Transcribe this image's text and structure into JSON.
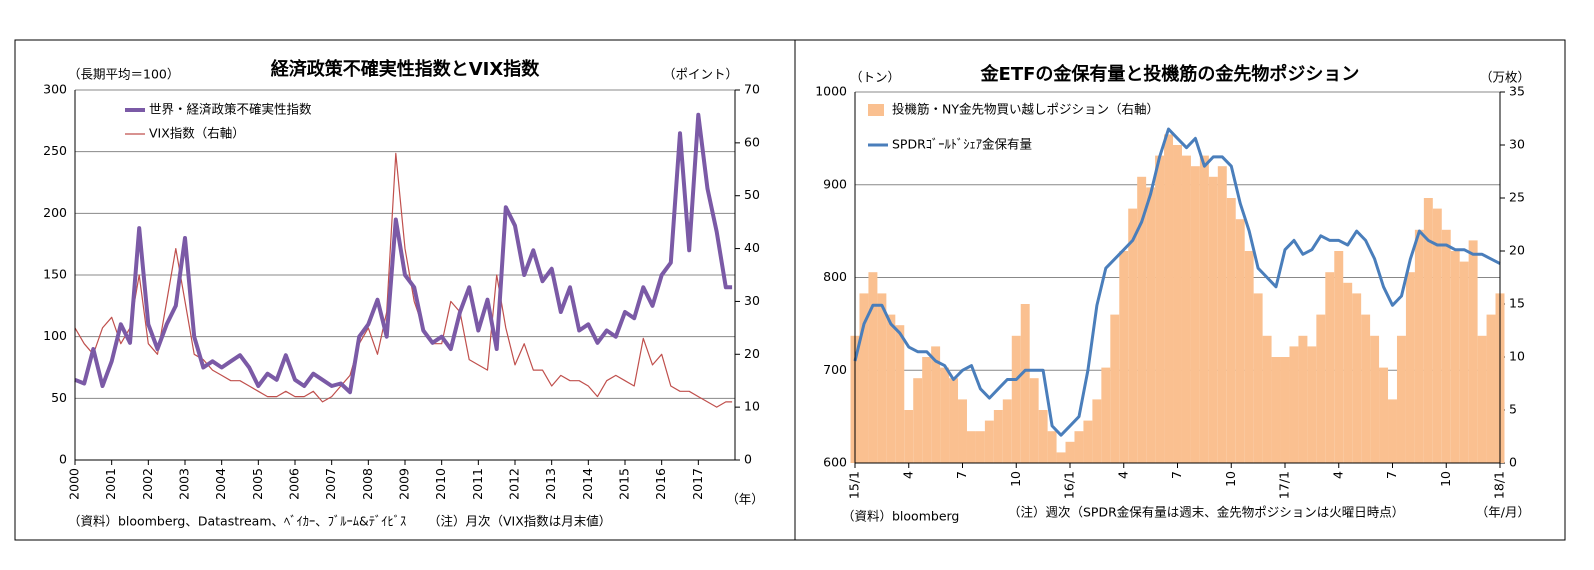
{
  "chart_data": [
    {
      "type": "line",
      "title": "経済政策不確実性指数とVIX指数",
      "ylabel": "（長期平均＝100）",
      "y2label": "（ポイント）",
      "xlabel": "（年）",
      "source": "（資料）bloomberg、Datastream、ﾍﾞｲｶｰ、ﾌﾞﾙｰﾑ&ﾃﾞｲﾋﾞｽ",
      "note": "（注）月次（VIX指数は月末値）",
      "grid": true,
      "legend": "upper left",
      "xlim": [
        2000,
        2018
      ],
      "xticks": [
        2000,
        2001,
        2002,
        2003,
        2004,
        2005,
        2006,
        2007,
        2008,
        2009,
        2010,
        2011,
        2012,
        2013,
        2014,
        2015,
        2016,
        2017
      ],
      "ylim": [
        0,
        300
      ],
      "yticks": [
        0,
        50,
        100,
        150,
        200,
        250,
        300
      ],
      "y2lim": [
        0,
        70
      ],
      "y2ticks": [
        0,
        10,
        20,
        30,
        40,
        50,
        60,
        70
      ],
      "x": [
        2000,
        2000.25,
        2000.5,
        2000.75,
        2001,
        2001.25,
        2001.5,
        2001.75,
        2002,
        2002.25,
        2002.5,
        2002.75,
        2003,
        2003.25,
        2003.5,
        2003.75,
        2004,
        2004.25,
        2004.5,
        2004.75,
        2005,
        2005.25,
        2005.5,
        2005.75,
        2006,
        2006.25,
        2006.5,
        2006.75,
        2007,
        2007.25,
        2007.5,
        2007.75,
        2008,
        2008.25,
        2008.5,
        2008.75,
        2009,
        2009.25,
        2009.5,
        2009.75,
        2010,
        2010.25,
        2010.5,
        2010.75,
        2011,
        2011.25,
        2011.5,
        2011.75,
        2012,
        2012.25,
        2012.5,
        2012.75,
        2013,
        2013.25,
        2013.5,
        2013.75,
        2014,
        2014.25,
        2014.5,
        2014.75,
        2015,
        2015.25,
        2015.5,
        2015.75,
        2016,
        2016.25,
        2016.5,
        2016.75,
        2017,
        2017.25,
        2017.5,
        2017.75,
        2017.92
      ],
      "series": [
        {
          "name": "世界・経済政策不確実性指数",
          "color": "#7b5aa6",
          "width": 4,
          "values": [
            65,
            62,
            90,
            60,
            80,
            110,
            95,
            188,
            110,
            90,
            110,
            125,
            180,
            100,
            75,
            80,
            75,
            80,
            85,
            75,
            60,
            70,
            65,
            85,
            65,
            60,
            70,
            65,
            60,
            62,
            55,
            100,
            110,
            130,
            100,
            195,
            150,
            140,
            105,
            95,
            100,
            90,
            120,
            140,
            105,
            130,
            90,
            205,
            190,
            150,
            170,
            145,
            155,
            120,
            140,
            105,
            110,
            95,
            105,
            100,
            120,
            115,
            140,
            125,
            150,
            160,
            265,
            170,
            280,
            220,
            185,
            140,
            140
          ]
        },
        {
          "name": "VIX指数（右軸）",
          "color": "#c0504d",
          "width": 1.2,
          "axis": "y2",
          "values": [
            25,
            22,
            20,
            25,
            27,
            22,
            25,
            35,
            22,
            20,
            30,
            40,
            30,
            20,
            19,
            17,
            16,
            15,
            15,
            14,
            13,
            12,
            12,
            13,
            12,
            12,
            13,
            11,
            12,
            14,
            16,
            22,
            25,
            20,
            28,
            58,
            40,
            30,
            25,
            22,
            22,
            30,
            28,
            19,
            18,
            17,
            35,
            25,
            18,
            22,
            17,
            17,
            14,
            16,
            15,
            15,
            14,
            12,
            15,
            16,
            15,
            14,
            23,
            18,
            20,
            14,
            13,
            13,
            12,
            11,
            10,
            11,
            11
          ]
        }
      ]
    },
    {
      "type": "combo",
      "title": "金ETFの金保有量と投機筋の金先物ポジション",
      "ylabel": "（トン）",
      "y2label": "（万枚）",
      "xlabel": "（年/月）",
      "source": "（資料）bloomberg",
      "note": "（注）週次（SPDR金保有量は週末、金先物ポジションは火曜日時点）",
      "grid": true,
      "legend": "upper left",
      "xlim": [
        0,
        36
      ],
      "xticks": [
        {
          "value": 0,
          "label": "15/1"
        },
        {
          "value": 3,
          "label": "4"
        },
        {
          "value": 6,
          "label": "7"
        },
        {
          "value": 9,
          "label": "10"
        },
        {
          "value": 12,
          "label": "16/1"
        },
        {
          "value": 15,
          "label": "4"
        },
        {
          "value": 18,
          "label": "7"
        },
        {
          "value": 21,
          "label": "10"
        },
        {
          "value": 24,
          "label": "17/1"
        },
        {
          "value": 27,
          "label": "4"
        },
        {
          "value": 30,
          "label": "7"
        },
        {
          "value": 33,
          "label": "10"
        },
        {
          "value": 36,
          "label": "18/1"
        }
      ],
      "ylim": [
        600,
        1000
      ],
      "yticks": [
        600,
        700,
        800,
        900,
        1000
      ],
      "y2lim": [
        0,
        35
      ],
      "y2ticks": [
        0,
        5,
        10,
        15,
        20,
        25,
        30,
        35
      ],
      "x": [
        0,
        0.5,
        1,
        1.5,
        2,
        2.5,
        3,
        3.5,
        4,
        4.5,
        5,
        5.5,
        6,
        6.5,
        7,
        7.5,
        8,
        8.5,
        9,
        9.5,
        10,
        10.5,
        11,
        11.5,
        12,
        12.5,
        13,
        13.5,
        14,
        14.5,
        15,
        15.5,
        16,
        16.5,
        17,
        17.5,
        18,
        18.5,
        19,
        19.5,
        20,
        20.5,
        21,
        21.5,
        22,
        22.5,
        23,
        23.5,
        24,
        24.5,
        25,
        25.5,
        26,
        26.5,
        27,
        27.5,
        28,
        28.5,
        29,
        29.5,
        30,
        30.5,
        31,
        31.5,
        32,
        32.5,
        33,
        33.5,
        34,
        34.5,
        35,
        35.5,
        36
      ],
      "series": [
        {
          "name": "投機筋・NY金先物買い越しポジション（右軸）",
          "type": "bar",
          "color": "#fac090",
          "axis": "y2",
          "values": [
            12,
            16,
            18,
            16,
            14,
            13,
            5,
            8,
            10,
            11,
            9,
            8,
            6,
            3,
            3,
            4,
            5,
            6,
            12,
            15,
            8,
            5,
            3,
            1,
            2,
            3,
            4,
            6,
            9,
            14,
            20,
            24,
            27,
            26,
            29,
            31,
            30,
            29,
            28,
            29,
            27,
            28,
            25,
            23,
            20,
            16,
            12,
            10,
            10,
            11,
            12,
            11,
            14,
            18,
            20,
            17,
            16,
            14,
            12,
            9,
            6,
            12,
            18,
            22,
            25,
            24,
            22,
            20,
            19,
            21,
            12,
            14,
            16
          ]
        },
        {
          "name": "SPDRｺﾞｰﾙﾄﾞｼｪｱ金保有量",
          "type": "line",
          "color": "#4a7ebb",
          "width": 3,
          "values": [
            710,
            750,
            770,
            770,
            750,
            740,
            725,
            720,
            720,
            710,
            705,
            690,
            700,
            705,
            680,
            670,
            680,
            690,
            690,
            700,
            700,
            700,
            640,
            630,
            640,
            650,
            700,
            770,
            810,
            820,
            830,
            840,
            860,
            890,
            930,
            960,
            950,
            940,
            950,
            920,
            930,
            930,
            920,
            880,
            850,
            810,
            800,
            790,
            830,
            840,
            825,
            830,
            845,
            840,
            840,
            835,
            850,
            840,
            820,
            790,
            770,
            780,
            820,
            850,
            840,
            835,
            835,
            830,
            830,
            825,
            825,
            820,
            815
          ]
        }
      ]
    }
  ]
}
